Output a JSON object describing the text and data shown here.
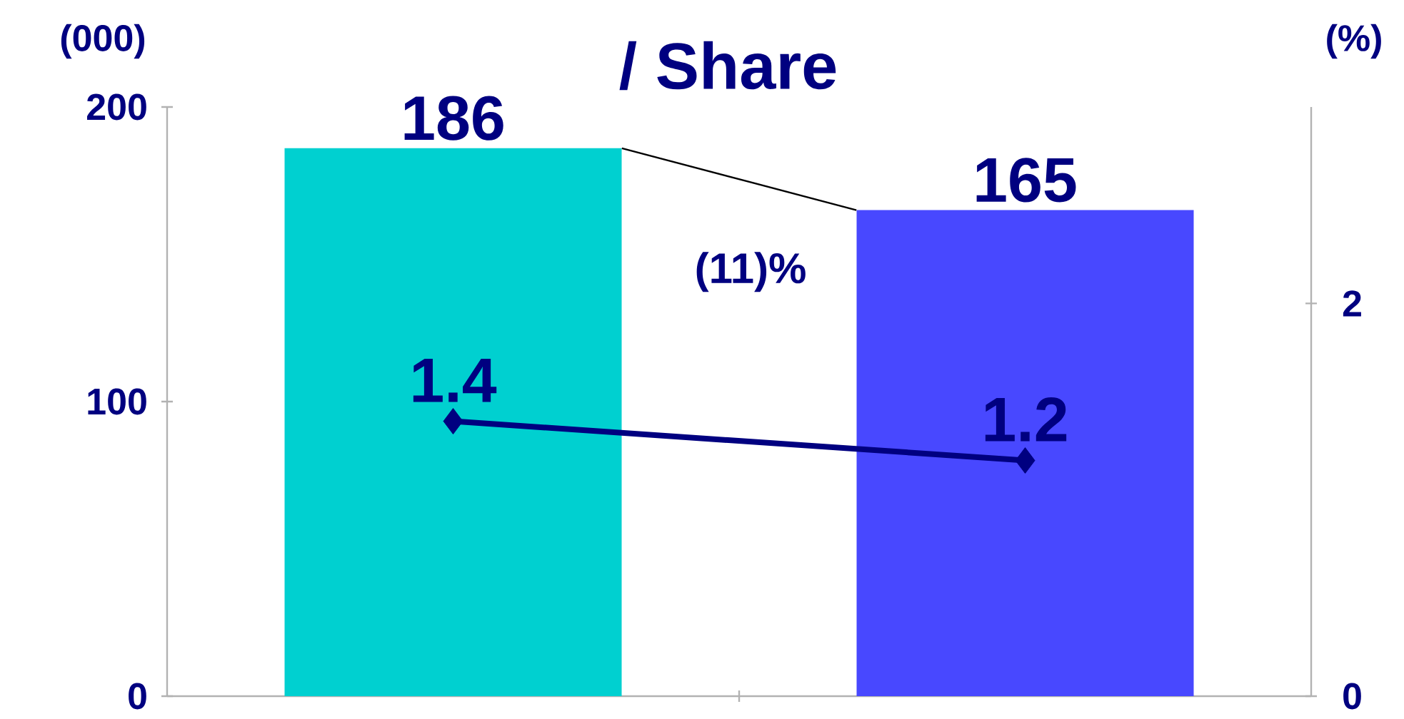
{
  "chart_data": {
    "type": "bar",
    "title": "/ Share",
    "ylabel": "(000)",
    "y2label": "(%)",
    "categories": [
      null,
      null
    ],
    "series": [
      {
        "colors": [
          "#00d0d0",
          "#4848ff"
        ],
        "values": [
          186,
          165
        ]
      },
      {
        "type": "line",
        "axis": "y2",
        "color": "#000080",
        "marker": "diamond",
        "values": [
          1.4,
          1.2
        ]
      }
    ],
    "ylim": [
      0,
      200
    ],
    "yticks": [
      0,
      100,
      200
    ],
    "y2lim": [
      0,
      3
    ],
    "y2ticks": [
      0,
      2
    ],
    "data_labels": true,
    "annotations": [
      "(11)%"
    ]
  }
}
